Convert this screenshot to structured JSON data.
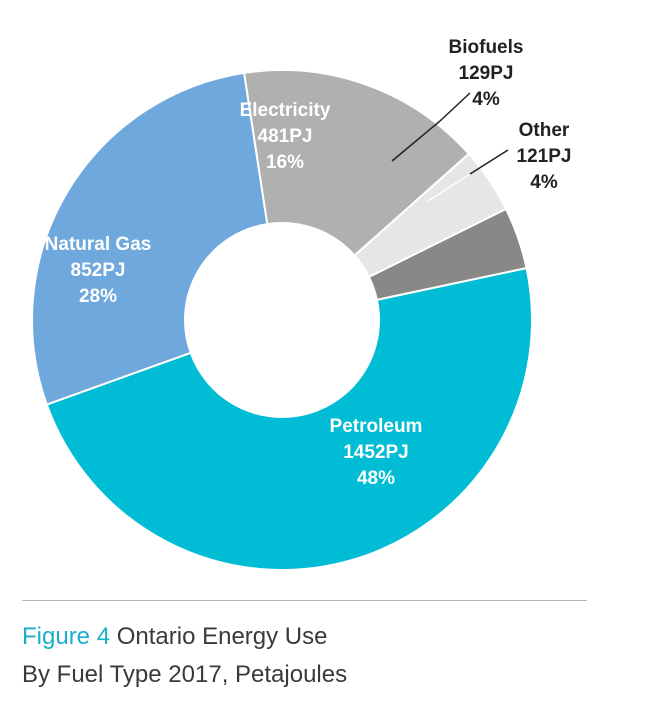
{
  "chart_data": {
    "type": "pie",
    "variant": "donut",
    "unit": "PJ",
    "slices": [
      {
        "label": "Petroleum",
        "value": 1452,
        "value_label": "1452PJ",
        "percent_label": "48%",
        "color": "#00bcd4"
      },
      {
        "label": "Natural Gas",
        "value": 852,
        "value_label": "852PJ",
        "percent_label": "28%",
        "color": "#6fa8dc"
      },
      {
        "label": "Electricity",
        "value": 481,
        "value_label": "481PJ",
        "percent_label": "16%",
        "color": "#b0b0b0"
      },
      {
        "label": "Biofuels",
        "value": 129,
        "value_label": "129PJ",
        "percent_label": "4%",
        "color": "#e6e6e6"
      },
      {
        "label": "Other",
        "value": 121,
        "value_label": "121PJ",
        "percent_label": "4%",
        "color": "#8a8787"
      }
    ]
  },
  "caption": {
    "figure_number": "Figure 4",
    "title": "Ontario Energy Use",
    "subtitle": "By Fuel Type 2017, Petajoules"
  }
}
